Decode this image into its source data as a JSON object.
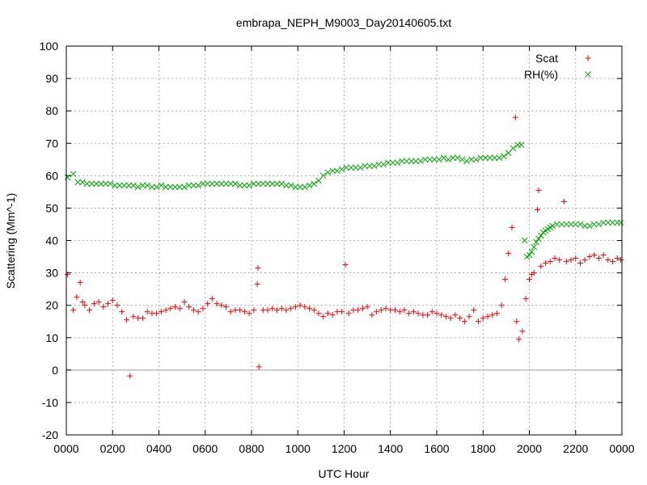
{
  "chart_data": {
    "type": "scatter",
    "title": "embrapa_NEPH_M9003_Day20140605.txt",
    "xlabel": "UTC Hour",
    "ylabel": "Scattering (Mm^-1)",
    "xlim": [
      0,
      24
    ],
    "ylim": [
      -20,
      100
    ],
    "x_ticks": [
      0,
      2,
      4,
      6,
      8,
      10,
      12,
      14,
      16,
      18,
      20,
      22,
      24
    ],
    "x_tick_labels": [
      "0000",
      "0200",
      "0400",
      "0600",
      "0800",
      "1000",
      "1200",
      "1400",
      "1600",
      "1800",
      "2000",
      "2200",
      "0000"
    ],
    "y_ticks": [
      -20,
      -10,
      0,
      10,
      20,
      30,
      40,
      50,
      60,
      70,
      80,
      90,
      100
    ],
    "y_tick_labels": [
      "-20",
      "-10",
      "0",
      "10",
      "20",
      "30",
      "40",
      "50",
      "60",
      "70",
      "80",
      "90",
      "100"
    ],
    "grid": true,
    "zero_line": true,
    "legend_position": "top-right",
    "series": [
      {
        "name": "Scat",
        "marker": "plus",
        "color": "#ff0000",
        "points": [
          [
            0.05,
            29.5
          ],
          [
            0.3,
            18.5
          ],
          [
            0.45,
            22.5
          ],
          [
            0.6,
            27.0
          ],
          [
            0.7,
            21.0
          ],
          [
            0.8,
            20.0
          ],
          [
            1.0,
            18.5
          ],
          [
            1.2,
            20.5
          ],
          [
            1.4,
            21.0
          ],
          [
            1.6,
            19.5
          ],
          [
            1.8,
            20.5
          ],
          [
            2.0,
            21.5
          ],
          [
            2.2,
            20.0
          ],
          [
            2.4,
            18.0
          ],
          [
            2.6,
            15.5
          ],
          [
            2.75,
            -1.8
          ],
          [
            2.9,
            16.5
          ],
          [
            3.1,
            16.0
          ],
          [
            3.3,
            16.0
          ],
          [
            3.5,
            18.0
          ],
          [
            3.7,
            17.5
          ],
          [
            3.9,
            17.5
          ],
          [
            4.1,
            18.0
          ],
          [
            4.3,
            18.5
          ],
          [
            4.5,
            19.0
          ],
          [
            4.7,
            19.5
          ],
          [
            4.9,
            19.0
          ],
          [
            5.1,
            21.0
          ],
          [
            5.3,
            19.5
          ],
          [
            5.5,
            18.5
          ],
          [
            5.7,
            18.0
          ],
          [
            5.9,
            19.0
          ],
          [
            6.1,
            20.5
          ],
          [
            6.3,
            22.0
          ],
          [
            6.5,
            20.5
          ],
          [
            6.7,
            20.0
          ],
          [
            6.9,
            19.5
          ],
          [
            7.1,
            18.0
          ],
          [
            7.3,
            18.5
          ],
          [
            7.5,
            18.5
          ],
          [
            7.7,
            18.0
          ],
          [
            7.9,
            17.5
          ],
          [
            8.1,
            18.5
          ],
          [
            8.25,
            26.5
          ],
          [
            8.28,
            31.5
          ],
          [
            8.32,
            1.0
          ],
          [
            8.5,
            18.5
          ],
          [
            8.7,
            18.5
          ],
          [
            8.9,
            19.0
          ],
          [
            9.1,
            18.5
          ],
          [
            9.3,
            19.0
          ],
          [
            9.5,
            18.5
          ],
          [
            9.7,
            19.0
          ],
          [
            9.9,
            19.5
          ],
          [
            10.1,
            20.0
          ],
          [
            10.3,
            19.5
          ],
          [
            10.5,
            19.0
          ],
          [
            10.7,
            18.5
          ],
          [
            10.9,
            17.5
          ],
          [
            11.1,
            16.5
          ],
          [
            11.3,
            17.5
          ],
          [
            11.5,
            17.0
          ],
          [
            11.7,
            18.0
          ],
          [
            11.9,
            18.0
          ],
          [
            12.05,
            32.5
          ],
          [
            12.2,
            17.5
          ],
          [
            12.4,
            18.5
          ],
          [
            12.6,
            18.5
          ],
          [
            12.8,
            19.0
          ],
          [
            13.0,
            19.5
          ],
          [
            13.2,
            17.0
          ],
          [
            13.4,
            18.0
          ],
          [
            13.6,
            18.5
          ],
          [
            13.8,
            19.0
          ],
          [
            14.0,
            18.5
          ],
          [
            14.2,
            18.5
          ],
          [
            14.4,
            18.0
          ],
          [
            14.6,
            18.5
          ],
          [
            14.8,
            17.5
          ],
          [
            15.0,
            18.0
          ],
          [
            15.2,
            17.5
          ],
          [
            15.4,
            17.0
          ],
          [
            15.6,
            17.0
          ],
          [
            15.8,
            18.0
          ],
          [
            16.0,
            17.5
          ],
          [
            16.2,
            17.0
          ],
          [
            16.4,
            16.5
          ],
          [
            16.6,
            16.0
          ],
          [
            16.8,
            17.0
          ],
          [
            17.0,
            16.0
          ],
          [
            17.2,
            15.0
          ],
          [
            17.4,
            16.5
          ],
          [
            17.6,
            18.5
          ],
          [
            17.8,
            15.0
          ],
          [
            18.0,
            16.0
          ],
          [
            18.2,
            16.5
          ],
          [
            18.4,
            17.0
          ],
          [
            18.6,
            17.5
          ],
          [
            18.8,
            20.0
          ],
          [
            18.95,
            28.0
          ],
          [
            19.1,
            36.0
          ],
          [
            19.25,
            44.0
          ],
          [
            19.4,
            78.0
          ],
          [
            19.45,
            15.0
          ],
          [
            19.55,
            9.5
          ],
          [
            19.7,
            12.0
          ],
          [
            19.85,
            22.0
          ],
          [
            20.0,
            28.0
          ],
          [
            20.1,
            29.5
          ],
          [
            20.2,
            30.0
          ],
          [
            20.35,
            49.5
          ],
          [
            20.4,
            55.5
          ],
          [
            20.5,
            32.0
          ],
          [
            20.7,
            33.0
          ],
          [
            20.9,
            33.5
          ],
          [
            21.1,
            34.5
          ],
          [
            21.3,
            34.0
          ],
          [
            21.5,
            52.0
          ],
          [
            21.6,
            33.5
          ],
          [
            21.8,
            34.0
          ],
          [
            22.0,
            34.5
          ],
          [
            22.2,
            33.0
          ],
          [
            22.4,
            34.0
          ],
          [
            22.6,
            35.0
          ],
          [
            22.8,
            35.5
          ],
          [
            23.0,
            34.5
          ],
          [
            23.2,
            35.5
          ],
          [
            23.4,
            34.0
          ],
          [
            23.6,
            33.5
          ],
          [
            23.8,
            34.5
          ],
          [
            23.95,
            34.0
          ]
        ]
      },
      {
        "name": "RH(%)",
        "marker": "cross",
        "color": "#00aa00",
        "points": [
          [
            0.05,
            59.5
          ],
          [
            0.3,
            60.5
          ],
          [
            0.5,
            58.0
          ],
          [
            0.7,
            58.0
          ],
          [
            0.9,
            57.5
          ],
          [
            1.1,
            57.5
          ],
          [
            1.3,
            57.5
          ],
          [
            1.5,
            57.5
          ],
          [
            1.7,
            57.5
          ],
          [
            1.9,
            57.5
          ],
          [
            2.1,
            57.0
          ],
          [
            2.3,
            57.0
          ],
          [
            2.5,
            57.0
          ],
          [
            2.7,
            57.0
          ],
          [
            2.9,
            57.0
          ],
          [
            3.1,
            56.5
          ],
          [
            3.3,
            57.0
          ],
          [
            3.5,
            57.0
          ],
          [
            3.7,
            56.5
          ],
          [
            3.9,
            56.5
          ],
          [
            4.1,
            57.0
          ],
          [
            4.3,
            56.5
          ],
          [
            4.5,
            56.5
          ],
          [
            4.7,
            56.5
          ],
          [
            4.9,
            56.5
          ],
          [
            5.1,
            56.5
          ],
          [
            5.3,
            57.0
          ],
          [
            5.5,
            57.0
          ],
          [
            5.7,
            57.0
          ],
          [
            5.9,
            57.5
          ],
          [
            6.1,
            57.5
          ],
          [
            6.3,
            57.5
          ],
          [
            6.5,
            57.5
          ],
          [
            6.7,
            57.5
          ],
          [
            6.9,
            57.5
          ],
          [
            7.1,
            57.5
          ],
          [
            7.3,
            57.5
          ],
          [
            7.5,
            57.0
          ],
          [
            7.7,
            57.0
          ],
          [
            7.9,
            57.0
          ],
          [
            8.1,
            57.5
          ],
          [
            8.3,
            57.5
          ],
          [
            8.5,
            57.5
          ],
          [
            8.7,
            57.5
          ],
          [
            8.9,
            57.5
          ],
          [
            9.1,
            57.5
          ],
          [
            9.3,
            57.5
          ],
          [
            9.5,
            57.0
          ],
          [
            9.7,
            57.0
          ],
          [
            9.9,
            56.5
          ],
          [
            10.1,
            56.5
          ],
          [
            10.3,
            56.5
          ],
          [
            10.5,
            57.0
          ],
          [
            10.7,
            57.5
          ],
          [
            10.9,
            58.5
          ],
          [
            11.1,
            60.0
          ],
          [
            11.3,
            61.0
          ],
          [
            11.5,
            61.5
          ],
          [
            11.7,
            61.5
          ],
          [
            11.9,
            62.0
          ],
          [
            12.1,
            62.5
          ],
          [
            12.3,
            62.5
          ],
          [
            12.5,
            62.5
          ],
          [
            12.7,
            62.5
          ],
          [
            12.9,
            63.0
          ],
          [
            13.1,
            63.0
          ],
          [
            13.3,
            63.0
          ],
          [
            13.5,
            63.5
          ],
          [
            13.7,
            63.5
          ],
          [
            13.9,
            64.0
          ],
          [
            14.1,
            64.0
          ],
          [
            14.3,
            64.0
          ],
          [
            14.5,
            64.5
          ],
          [
            14.7,
            64.5
          ],
          [
            14.9,
            64.5
          ],
          [
            15.1,
            64.5
          ],
          [
            15.3,
            64.5
          ],
          [
            15.5,
            65.0
          ],
          [
            15.7,
            65.0
          ],
          [
            15.9,
            65.0
          ],
          [
            16.1,
            65.0
          ],
          [
            16.3,
            65.5
          ],
          [
            16.5,
            65.0
          ],
          [
            16.7,
            65.5
          ],
          [
            16.9,
            65.5
          ],
          [
            17.1,
            65.0
          ],
          [
            17.3,
            64.5
          ],
          [
            17.5,
            65.0
          ],
          [
            17.7,
            65.0
          ],
          [
            17.9,
            65.5
          ],
          [
            18.1,
            65.5
          ],
          [
            18.3,
            65.5
          ],
          [
            18.5,
            65.5
          ],
          [
            18.7,
            65.5
          ],
          [
            18.9,
            66.0
          ],
          [
            19.1,
            67.0
          ],
          [
            19.3,
            68.5
          ],
          [
            19.5,
            69.5
          ],
          [
            19.65,
            69.5
          ],
          [
            19.8,
            40.0
          ],
          [
            19.9,
            35.0
          ],
          [
            20.0,
            35.5
          ],
          [
            20.1,
            36.5
          ],
          [
            20.2,
            38.0
          ],
          [
            20.3,
            39.5
          ],
          [
            20.4,
            40.5
          ],
          [
            20.5,
            41.5
          ],
          [
            20.6,
            42.5
          ],
          [
            20.7,
            43.0
          ],
          [
            20.8,
            43.5
          ],
          [
            20.9,
            44.0
          ],
          [
            21.0,
            44.5
          ],
          [
            21.2,
            45.0
          ],
          [
            21.4,
            45.0
          ],
          [
            21.6,
            45.0
          ],
          [
            21.8,
            45.0
          ],
          [
            22.0,
            45.0
          ],
          [
            22.2,
            45.0
          ],
          [
            22.4,
            44.5
          ],
          [
            22.6,
            44.5
          ],
          [
            22.8,
            45.0
          ],
          [
            23.0,
            45.0
          ],
          [
            23.2,
            45.5
          ],
          [
            23.4,
            45.5
          ],
          [
            23.6,
            45.5
          ],
          [
            23.8,
            45.5
          ],
          [
            23.95,
            45.5
          ]
        ]
      }
    ]
  }
}
